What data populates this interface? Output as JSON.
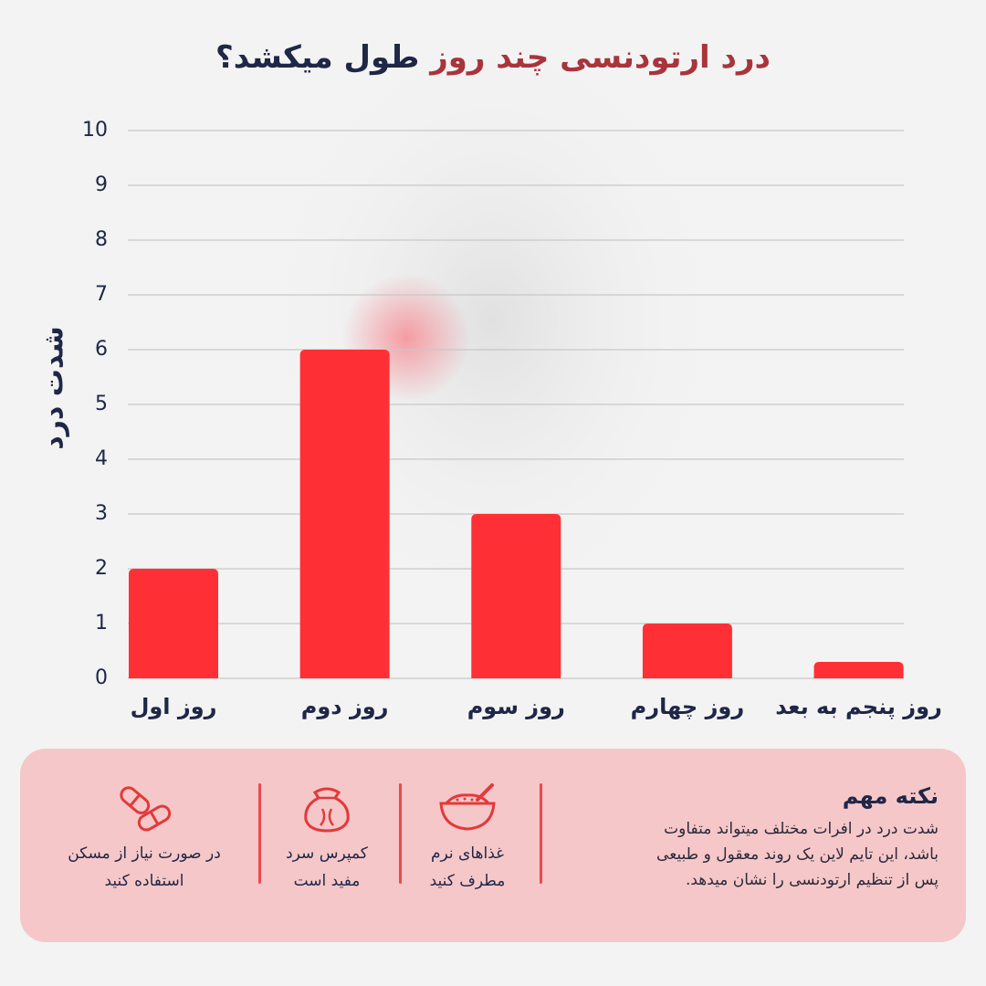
{
  "chart_data": {
    "type": "bar",
    "title_parts": [
      "درد ارتودنسی چند روز",
      "طول میکشد؟"
    ],
    "y_label": "شدت درد",
    "categories": [
      "روز اول",
      "روز دوم",
      "روز سوم",
      "روز چهارم",
      "روز پنجم به بعد"
    ],
    "values": [
      2,
      6,
      3,
      1,
      0.3
    ],
    "color": "#ff3035",
    "ylim": [
      0,
      10
    ],
    "yticks": [
      0,
      1,
      2,
      3,
      4,
      5,
      6,
      7,
      8,
      9,
      10
    ],
    "grid": true
  },
  "note": {
    "title": "نکته مهم",
    "lines": [
      "شدت درد در افرات مختلف میتواند متفاوت",
      "باشد، این تایم لاین یک روند معقول و طبیعی",
      "پس از تنظیم ارتودنسی را نشان میدهد."
    ]
  },
  "tips": [
    {
      "lines": [
        "غذاهای نرم",
        "مطرف کنید"
      ]
    },
    {
      "lines": [
        "کمپرس سرد",
        "مفید است"
      ]
    },
    {
      "lines": [
        "در صورت نیاز از مسکن",
        "استفاده کنید"
      ]
    }
  ]
}
